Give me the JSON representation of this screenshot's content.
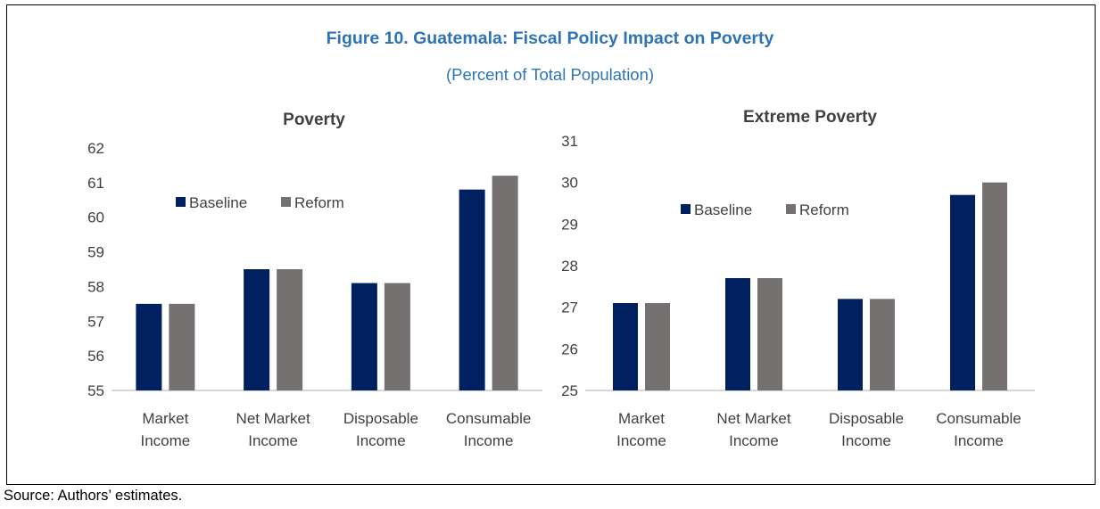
{
  "figure": {
    "title": "Figure 10. Guatemala: Fiscal Policy Impact on Poverty",
    "subtitle": "(Percent of Total Population)",
    "source": "Source: Authors’ estimates."
  },
  "colors": {
    "baseline": "#002060",
    "reform": "#767171",
    "axis": "#bfbfbf",
    "title": "#2e74b5"
  },
  "chart_data": [
    {
      "type": "bar",
      "title": "Poverty",
      "categories": [
        [
          "Market",
          "Income"
        ],
        [
          "Net Market",
          "Income"
        ],
        [
          "Disposable",
          "Income"
        ],
        [
          "Consumable",
          "Income"
        ]
      ],
      "series": [
        {
          "name": "Baseline",
          "values": [
            57.5,
            58.5,
            58.1,
            60.8
          ]
        },
        {
          "name": "Reform",
          "values": [
            57.5,
            58.5,
            58.1,
            61.2
          ]
        }
      ],
      "ylim": [
        55,
        62
      ],
      "yticks": [
        55,
        56,
        57,
        58,
        59,
        60,
        61,
        62
      ],
      "legend": "top-left",
      "grid": false
    },
    {
      "type": "bar",
      "title": "Extreme Poverty",
      "categories": [
        [
          "Market",
          "Income"
        ],
        [
          "Net Market",
          "Income"
        ],
        [
          "Disposable",
          "Income"
        ],
        [
          "Consumable",
          "Income"
        ]
      ],
      "series": [
        {
          "name": "Baseline",
          "values": [
            27.1,
            27.7,
            27.2,
            29.7
          ]
        },
        {
          "name": "Reform",
          "values": [
            27.1,
            27.7,
            27.2,
            30.0
          ]
        }
      ],
      "ylim": [
        25,
        31
      ],
      "yticks": [
        25,
        26,
        27,
        28,
        29,
        30,
        31
      ],
      "legend": "top-left",
      "grid": false
    }
  ]
}
